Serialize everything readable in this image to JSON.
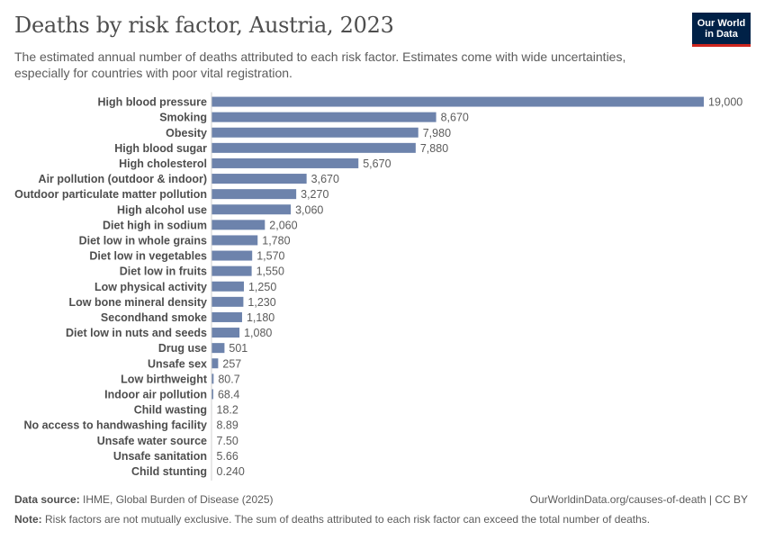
{
  "header": {
    "title": "Deaths by risk factor, Austria, 2023",
    "subtitle": "The estimated annual number of deaths attributed to each risk factor. Estimates come with wide uncertainties, especially for countries with poor vital registration.",
    "logo_line1": "Our World",
    "logo_line2": "in Data"
  },
  "footer": {
    "source_label": "Data source:",
    "source_text": "IHME, Global Burden of Disease (2025)",
    "url_text": "OurWorldinData.org/causes-of-death | CC BY",
    "note_label": "Note:",
    "note_text": "Risk factors are not mutually exclusive. The sum of deaths attributed to each risk factor can exceed the total number of deaths."
  },
  "colors": {
    "bar": "#6d83ac",
    "label": "#4e4e4e",
    "value": "#5b5b5b",
    "axis": "#d0d0d0"
  },
  "chart_data": {
    "type": "bar",
    "orientation": "horizontal",
    "categories": [
      "High blood pressure",
      "Smoking",
      "Obesity",
      "High blood sugar",
      "High cholesterol",
      "Air pollution (outdoor & indoor)",
      "Outdoor particulate matter pollution",
      "High alcohol use",
      "Diet high in sodium",
      "Diet low in whole grains",
      "Diet low in vegetables",
      "Diet low in fruits",
      "Low physical activity",
      "Low bone mineral density",
      "Secondhand smoke",
      "Diet low in nuts and seeds",
      "Drug use",
      "Unsafe sex",
      "Low birthweight",
      "Indoor air pollution",
      "Child wasting",
      "No access to handwashing facility",
      "Unsafe water source",
      "Unsafe sanitation",
      "Child stunting"
    ],
    "values": [
      19000,
      8670,
      7980,
      7880,
      5670,
      3670,
      3270,
      3060,
      2060,
      1780,
      1570,
      1550,
      1250,
      1230,
      1180,
      1080,
      501,
      257,
      80.7,
      68.4,
      18.2,
      8.89,
      7.5,
      5.66,
      0.24
    ],
    "value_labels": [
      "19,000",
      "8,670",
      "7,980",
      "7,880",
      "5,670",
      "3,670",
      "3,270",
      "3,060",
      "2,060",
      "1,780",
      "1,570",
      "1,550",
      "1,250",
      "1,230",
      "1,180",
      "1,080",
      "501",
      "257",
      "80.7",
      "68.4",
      "18.2",
      "8.89",
      "7.50",
      "5.66",
      "0.240"
    ],
    "xlim": [
      0,
      19000
    ]
  }
}
